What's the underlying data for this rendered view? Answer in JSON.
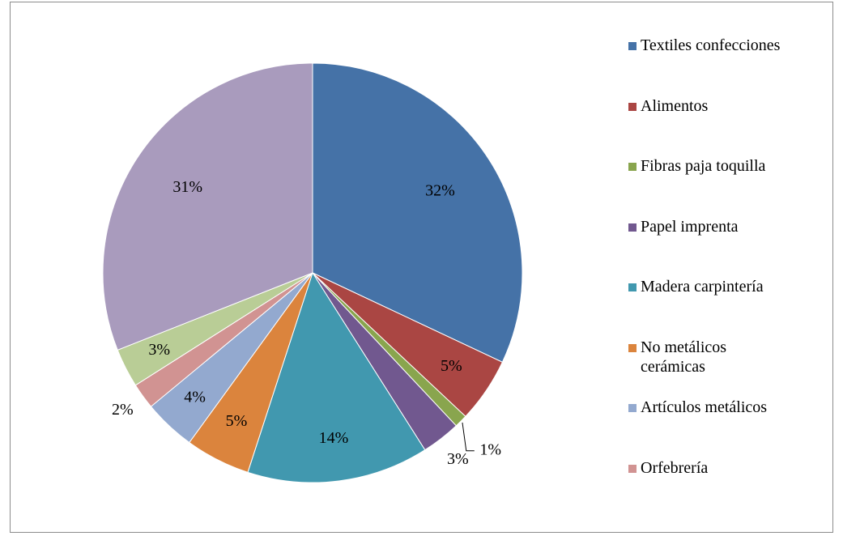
{
  "chart_data": {
    "type": "pie",
    "categories": [
      "Textiles confecciones",
      "Alimentos",
      "Fibras paja toquilla",
      "Papel imprenta",
      "Madera carpintería",
      "No metálicos\ncerámicas",
      "Artículos metálicos",
      "Orfebrería",
      null,
      null
    ],
    "values": [
      32,
      5,
      1,
      3,
      14,
      5,
      4,
      2,
      3,
      31
    ],
    "value_labels": [
      "32%",
      "5%",
      "1%",
      "3%",
      "14%",
      "5%",
      "4%",
      "2%",
      "3%",
      "31%"
    ],
    "colors": [
      "#4572a7",
      "#aa4643",
      "#89a54e",
      "#71588f",
      "#4198af",
      "#db843d",
      "#93a9cf",
      "#d19392",
      "#b9cd96",
      "#a99bbd"
    ]
  }
}
